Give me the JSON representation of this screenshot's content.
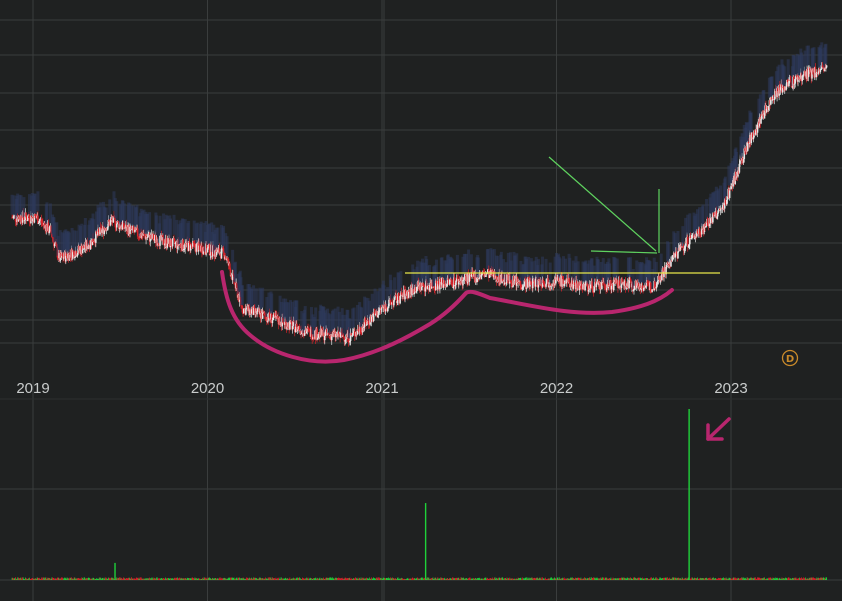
{
  "chart_data": {
    "type": "candlestick",
    "interval_badge": "D",
    "x_tick_labels": [
      "2019",
      "2020",
      "2021",
      "2022",
      "2023"
    ],
    "grid": true,
    "colors": {
      "background": "#1f2121",
      "grid": "#3a3d3d",
      "candle_up": "#e6e6e6",
      "candle_down": "#d8232a",
      "shadow_band": "#2e3a5c",
      "volume_up": "#1fd13a",
      "volume_down": "#d8232a",
      "resistance_line": "#e6e64a",
      "annotation_arrow": "#5fd35f",
      "cup_curve": "#b8266e"
    },
    "price_path_approx": [
      [
        2018.88,
        0.8
      ],
      [
        2019.02,
        0.8
      ],
      [
        2019.1,
        0.72
      ],
      [
        2019.15,
        0.55
      ],
      [
        2019.3,
        0.62
      ],
      [
        2019.45,
        0.78
      ],
      [
        2019.6,
        0.7
      ],
      [
        2019.8,
        0.64
      ],
      [
        2019.95,
        0.62
      ],
      [
        2020.1,
        0.58
      ],
      [
        2020.2,
        0.25
      ],
      [
        2020.4,
        0.18
      ],
      [
        2020.6,
        0.1
      ],
      [
        2020.82,
        0.08
      ],
      [
        2021.0,
        0.25
      ],
      [
        2021.2,
        0.38
      ],
      [
        2021.45,
        0.42
      ],
      [
        2021.6,
        0.46
      ],
      [
        2021.8,
        0.4
      ],
      [
        2022.0,
        0.42
      ],
      [
        2022.2,
        0.38
      ],
      [
        2022.4,
        0.4
      ],
      [
        2022.55,
        0.38
      ],
      [
        2022.7,
        0.6
      ],
      [
        2022.95,
        0.85
      ],
      [
        2023.1,
        1.25
      ],
      [
        2023.25,
        1.55
      ],
      [
        2023.4,
        1.65
      ],
      [
        2023.55,
        1.7
      ]
    ],
    "volume_spikes": [
      {
        "x": 2019.47,
        "v": 0.1,
        "up": true
      },
      {
        "x": 2021.25,
        "v": 0.45,
        "up": true
      },
      {
        "x": 2022.76,
        "v": 1.0,
        "up": true
      }
    ]
  }
}
